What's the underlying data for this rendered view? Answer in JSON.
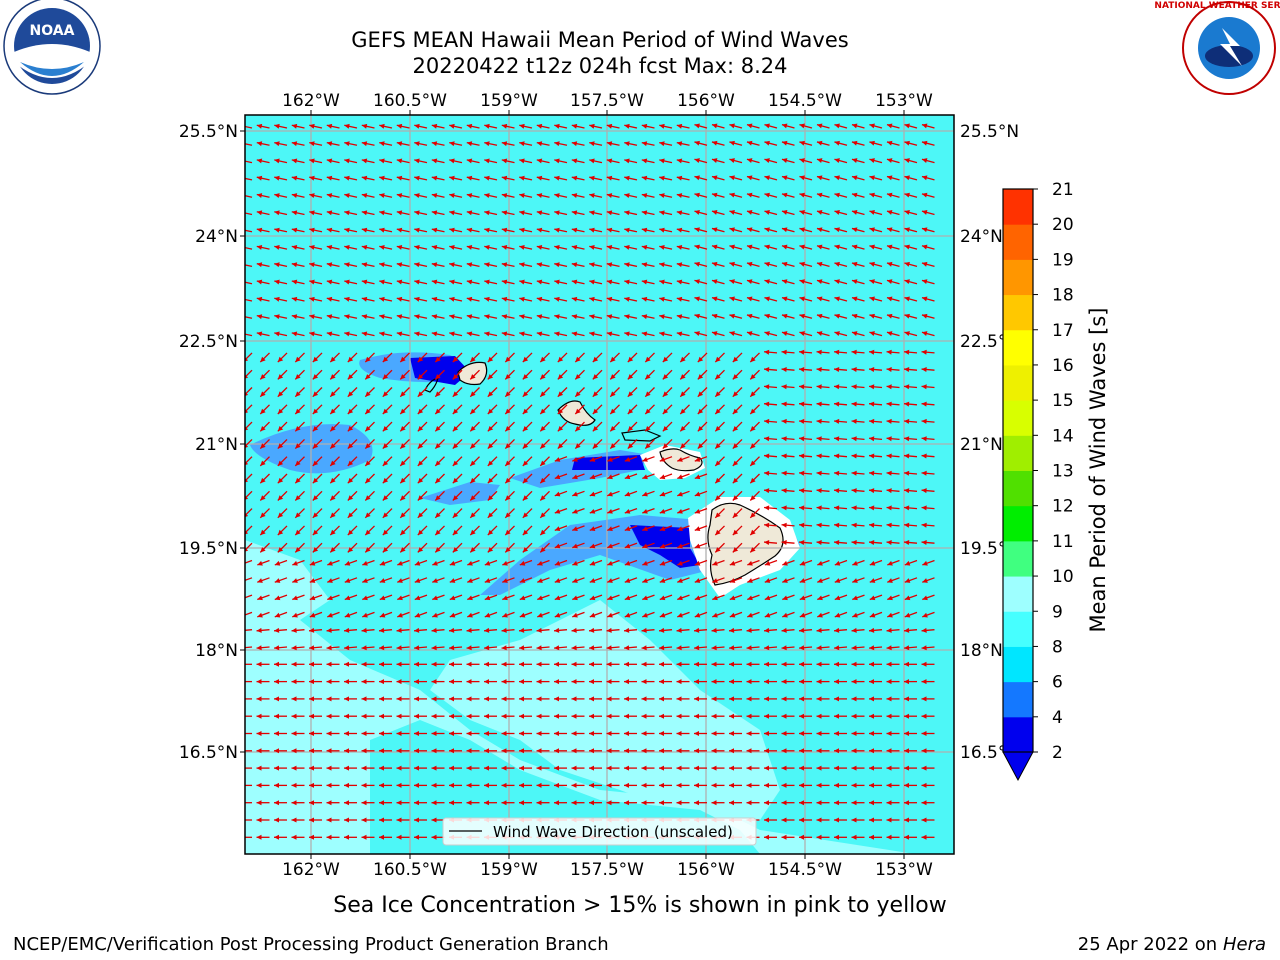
{
  "header": {
    "title_line1": "GEFS MEAN Hawaii Mean Period of Wind Waves",
    "title_line2": "20220422 t12z 024h fcst   Max: 8.24"
  },
  "logos": {
    "noaa_text": "NOAA",
    "nws_text": "NATIONAL WEATHER SERVICE"
  },
  "map": {
    "lon_labels": [
      "162°W",
      "160.5°W",
      "159°W",
      "157.5°W",
      "156°W",
      "154.5°W",
      "153°W"
    ],
    "lat_labels": [
      "25.5°N",
      "24°N",
      "22.5°N",
      "21°N",
      "19.5°N",
      "18°N",
      "16.5°N"
    ],
    "legend_label": "Wind Wave Direction (unscaled)",
    "arrow_color": "#e00000",
    "background_color": "#4df7f7"
  },
  "colorbar": {
    "label": "Mean Period of Wind Waves [s]",
    "ticks": [
      "2",
      "4",
      "6",
      "8",
      "9",
      "10",
      "11",
      "12",
      "13",
      "14",
      "15",
      "16",
      "17",
      "18",
      "19",
      "20",
      "21"
    ],
    "colors": [
      "#0000ee",
      "#1478ff",
      "#00e6ff",
      "#46ffff",
      "#9effff",
      "#40ff80",
      "#00ee00",
      "#50e000",
      "#a0ee00",
      "#d8ff00",
      "#eef000",
      "#ffff00",
      "#ffc800",
      "#ff9600",
      "#ff6400",
      "#ff3200",
      "#ff0000"
    ]
  },
  "caption": "Sea Ice Concentration > 15% is shown in pink to yellow",
  "footer": {
    "left": "NCEP/EMC/Verification Post Processing Product Generation Branch",
    "right_date": "25 Apr 2022 on ",
    "right_host": "Hera"
  }
}
